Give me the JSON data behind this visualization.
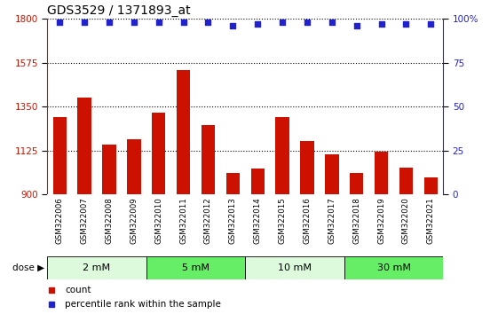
{
  "title": "GDS3529 / 1371893_at",
  "samples": [
    "GSM322006",
    "GSM322007",
    "GSM322008",
    "GSM322009",
    "GSM322010",
    "GSM322011",
    "GSM322012",
    "GSM322013",
    "GSM322014",
    "GSM322015",
    "GSM322016",
    "GSM322017",
    "GSM322018",
    "GSM322019",
    "GSM322020",
    "GSM322021"
  ],
  "counts": [
    1295,
    1395,
    1155,
    1185,
    1320,
    1540,
    1255,
    1010,
    1035,
    1295,
    1175,
    1105,
    1010,
    1120,
    1040,
    990
  ],
  "percentiles": [
    98,
    98,
    98,
    98,
    98,
    98,
    98,
    96,
    97,
    98,
    98,
    98,
    96,
    97,
    97,
    97
  ],
  "bar_color": "#cc1100",
  "dot_color": "#2222cc",
  "ylim_left": [
    900,
    1800
  ],
  "ylim_right": [
    0,
    100
  ],
  "yticks_left": [
    900,
    1125,
    1350,
    1575,
    1800
  ],
  "yticks_right": [
    0,
    25,
    50,
    75,
    100
  ],
  "ytick_labels_right": [
    "0",
    "25",
    "50",
    "75",
    "100%"
  ],
  "dose_groups": [
    {
      "label": "2 mM",
      "start": 0,
      "end": 4,
      "color": "#ddfadd"
    },
    {
      "label": "5 mM",
      "start": 4,
      "end": 8,
      "color": "#66ee66"
    },
    {
      "label": "10 mM",
      "start": 8,
      "end": 12,
      "color": "#ddfadd"
    },
    {
      "label": "30 mM",
      "start": 12,
      "end": 16,
      "color": "#66ee66"
    }
  ],
  "legend_count_label": "count",
  "legend_percentile_label": "percentile rank within the sample",
  "sample_bg_color": "#cccccc",
  "title_fontsize": 10
}
